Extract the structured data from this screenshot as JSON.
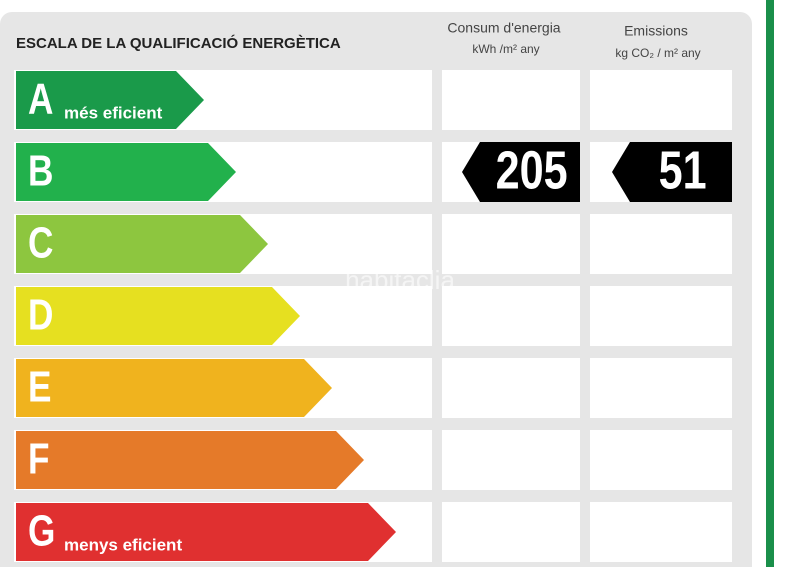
{
  "header": {
    "title": "ESCALA DE LA QUALIFICACIÓ ENERGÈTICA",
    "columns": [
      {
        "title": "Consum d'energia",
        "unit": "kWh /m² any"
      },
      {
        "title": "Emissions",
        "unit": "kg CO₂ / m² any"
      }
    ]
  },
  "rows": [
    {
      "letter": "A",
      "note": "més eficient"
    },
    {
      "letter": "B",
      "consumption": 205,
      "emissions": 51
    },
    {
      "letter": "C"
    },
    {
      "letter": "D"
    },
    {
      "letter": "E"
    },
    {
      "letter": "F"
    },
    {
      "letter": "G",
      "note": "menys eficient"
    }
  ],
  "watermark": "habitaclia"
}
